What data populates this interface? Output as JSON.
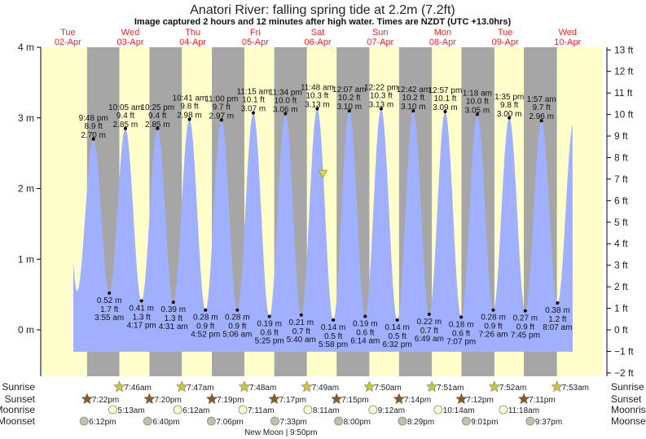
{
  "title": "Anatori River: falling  spring tide at 2.2m (7.2ft)",
  "subtitle": "Image captured 2 hours and 12 minutes after high water. Times are NZDT (UTC +13.0hrs)",
  "chart_data": {
    "type": "area",
    "days": [
      {
        "dow": "Tue",
        "date": "02-Apr"
      },
      {
        "dow": "Wed",
        "date": "03-Apr"
      },
      {
        "dow": "Thu",
        "date": "04-Apr"
      },
      {
        "dow": "Fri",
        "date": "05-Apr"
      },
      {
        "dow": "Sat",
        "date": "06-Apr"
      },
      {
        "dow": "Sun",
        "date": "07-Apr"
      },
      {
        "dow": "Mon",
        "date": "08-Apr"
      },
      {
        "dow": "Tue",
        "date": "09-Apr"
      },
      {
        "dow": "Wed",
        "date": "10-Apr"
      }
    ],
    "y_left": {
      "unit": "m",
      "ticks": [
        "0 m",
        "1 m",
        "2 m",
        "3 m",
        "4 m"
      ],
      "range": [
        -0.65,
        4
      ]
    },
    "y_right": {
      "unit": "ft",
      "ticks": [
        "−2 ft",
        "−1 ft",
        "0 ft",
        "1 ft",
        "2 ft",
        "3 ft",
        "4 ft",
        "5 ft",
        "6 ft",
        "7 ft",
        "8 ft",
        "9 ft",
        "10 ft",
        "11 ft",
        "12 ft",
        "13 ft"
      ]
    },
    "current": {
      "height_m": 2.2,
      "height_ft": 7.2,
      "state": "falling",
      "date": "06-Apr",
      "time": "2:00 pm"
    },
    "extremes": [
      {
        "type": "high",
        "date": "02-Apr",
        "time": "9:48 pm",
        "m": "2.70 m",
        "ft": "8.9 ft",
        "v": 2.7
      },
      {
        "type": "low",
        "date": "03-Apr",
        "time": "3:55 am",
        "m": "0.52 m",
        "ft": "1.7 ft",
        "v": 0.52
      },
      {
        "type": "high",
        "date": "03-Apr",
        "time": "10:05 am",
        "m": "2.85 m",
        "ft": "9.4 ft",
        "v": 2.85
      },
      {
        "type": "low",
        "date": "03-Apr",
        "time": "4:17 pm",
        "m": "0.41 m",
        "ft": "1.3 ft",
        "v": 0.41
      },
      {
        "type": "high",
        "date": "03-Apr",
        "time": "10:25 pm",
        "m": "2.85 m",
        "ft": "9.4 ft",
        "v": 2.85
      },
      {
        "type": "low",
        "date": "04-Apr",
        "time": "4:31 am",
        "m": "0.39 m",
        "ft": "1.3 ft",
        "v": 0.39
      },
      {
        "type": "high",
        "date": "04-Apr",
        "time": "10:41 am",
        "m": "2.98 m",
        "ft": "9.8 ft",
        "v": 2.98
      },
      {
        "type": "low",
        "date": "04-Apr",
        "time": "4:52 pm",
        "m": "0.28 m",
        "ft": "0.9 ft",
        "v": 0.28
      },
      {
        "type": "high",
        "date": "04-Apr",
        "time": "11:00 pm",
        "m": "2.97 m",
        "ft": "9.7 ft",
        "v": 2.97
      },
      {
        "type": "low",
        "date": "05-Apr",
        "time": "5:06 am",
        "m": "0.28 m",
        "ft": "0.9 ft",
        "v": 0.28
      },
      {
        "type": "high",
        "date": "05-Apr",
        "time": "11:15 am",
        "m": "3.07 m",
        "ft": "10.1 ft",
        "v": 3.07
      },
      {
        "type": "low",
        "date": "05-Apr",
        "time": "5:25 pm",
        "m": "0.19 m",
        "ft": "0.6 ft",
        "v": 0.19
      },
      {
        "type": "high",
        "date": "05-Apr",
        "time": "11:34 pm",
        "m": "3.06 m",
        "ft": "10.0 ft",
        "v": 3.06
      },
      {
        "type": "low",
        "date": "06-Apr",
        "time": "5:40 am",
        "m": "0.21 m",
        "ft": "0.7 ft",
        "v": 0.21
      },
      {
        "type": "high",
        "date": "06-Apr",
        "time": "11:48 am",
        "m": "3.13 m",
        "ft": "10.3 ft",
        "v": 3.13
      },
      {
        "type": "low",
        "date": "06-Apr",
        "time": "5:58 pm",
        "m": "0.14 m",
        "ft": "0.5 ft",
        "v": 0.14
      },
      {
        "type": "high",
        "date": "07-Apr",
        "time": "12:07 am",
        "m": "3.10 m",
        "ft": "10.2 ft",
        "v": 3.1
      },
      {
        "type": "low",
        "date": "07-Apr",
        "time": "6:14 am",
        "m": "0.19 m",
        "ft": "0.6 ft",
        "v": 0.19
      },
      {
        "type": "high",
        "date": "07-Apr",
        "time": "12:22 pm",
        "m": "3.13 m",
        "ft": "10.3 ft",
        "v": 3.13
      },
      {
        "type": "low",
        "date": "07-Apr",
        "time": "6:32 pm",
        "m": "0.14 m",
        "ft": "0.5 ft",
        "v": 0.14
      },
      {
        "type": "high",
        "date": "08-Apr",
        "time": "12:42 am",
        "m": "3.10 m",
        "ft": "10.2 ft",
        "v": 3.1
      },
      {
        "type": "low",
        "date": "08-Apr",
        "time": "6:49 am",
        "m": "0.22 m",
        "ft": "0.7 ft",
        "v": 0.22
      },
      {
        "type": "high",
        "date": "08-Apr",
        "time": "12:57 pm",
        "m": "3.09 m",
        "ft": "10.1 ft",
        "v": 3.09
      },
      {
        "type": "low",
        "date": "08-Apr",
        "time": "7:07 pm",
        "m": "0.18 m",
        "ft": "0.6 ft",
        "v": 0.18
      },
      {
        "type": "high",
        "date": "09-Apr",
        "time": "1:18 am",
        "m": "3.05 m",
        "ft": "10.0 ft",
        "v": 3.05
      },
      {
        "type": "low",
        "date": "09-Apr",
        "time": "7:26 am",
        "m": "0.28 m",
        "ft": "0.9 ft",
        "v": 0.28
      },
      {
        "type": "high",
        "date": "09-Apr",
        "time": "1:35 pm",
        "m": "3.00 m",
        "ft": "9.8 ft",
        "v": 3.0
      },
      {
        "type": "low",
        "date": "09-Apr",
        "time": "7:45 pm",
        "m": "0.27 m",
        "ft": "0.9 ft",
        "v": 0.27
      },
      {
        "type": "high",
        "date": "10-Apr",
        "time": "1:57 am",
        "m": "2.96 m",
        "ft": "9.7 ft",
        "v": 2.96
      },
      {
        "type": "low",
        "date": "10-Apr",
        "time": "8:07 am",
        "m": "0.38 m",
        "ft": "1.2 ft",
        "v": 0.38
      }
    ]
  },
  "astro": {
    "labels": {
      "sunrise": "Sunrise",
      "sunset": "Sunset",
      "moonrise": "Moonrise",
      "moonset": "Moonset"
    },
    "sunrise": [
      [
        "03-Apr",
        "7:46am"
      ],
      [
        "04-Apr",
        "7:47am"
      ],
      [
        "05-Apr",
        "7:48am"
      ],
      [
        "06-Apr",
        "7:49am"
      ],
      [
        "07-Apr",
        "7:50am"
      ],
      [
        "08-Apr",
        "7:51am"
      ],
      [
        "09-Apr",
        "7:52am"
      ],
      [
        "10-Apr",
        "7:53am"
      ]
    ],
    "sunset": [
      [
        "02-Apr",
        "7:22pm"
      ],
      [
        "03-Apr",
        "7:20pm"
      ],
      [
        "04-Apr",
        "7:19pm"
      ],
      [
        "05-Apr",
        "7:17pm"
      ],
      [
        "06-Apr",
        "7:15pm"
      ],
      [
        "07-Apr",
        "7:14pm"
      ],
      [
        "08-Apr",
        "7:12pm"
      ],
      [
        "09-Apr",
        "7:11pm"
      ]
    ],
    "moonrise": [
      [
        "03-Apr",
        "5:13am"
      ],
      [
        "04-Apr",
        "6:12am"
      ],
      [
        "05-Apr",
        "7:11am"
      ],
      [
        "06-Apr",
        "8:11am"
      ],
      [
        "07-Apr",
        "9:12am"
      ],
      [
        "08-Apr",
        "10:14am"
      ],
      [
        "09-Apr",
        "11:18am"
      ]
    ],
    "moonset": [
      [
        "02-Apr",
        "6:12pm"
      ],
      [
        "03-Apr",
        "6:40pm"
      ],
      [
        "04-Apr",
        "7:06pm"
      ],
      [
        "05-Apr",
        "7:33pm"
      ],
      [
        "06-Apr",
        "8:00pm"
      ],
      [
        "07-Apr",
        "8:29pm"
      ],
      [
        "08-Apr",
        "9:01pm"
      ],
      [
        "09-Apr",
        "9:37pm"
      ]
    ],
    "moon_phase": {
      "date": "05-Apr",
      "time": "9:50pm",
      "text": "New Moon | 9:50pm"
    }
  },
  "colors": {
    "day": "#ffffcc",
    "night": "#a6a6a6",
    "water": "#a0b0ff",
    "day_label": "#ff2020",
    "sunrise": "#c8c832",
    "sunset": "#8b5a2b",
    "moonrise": "#ffffc8",
    "moonset": "#c0c0b0",
    "marker": "#e0e020"
  }
}
